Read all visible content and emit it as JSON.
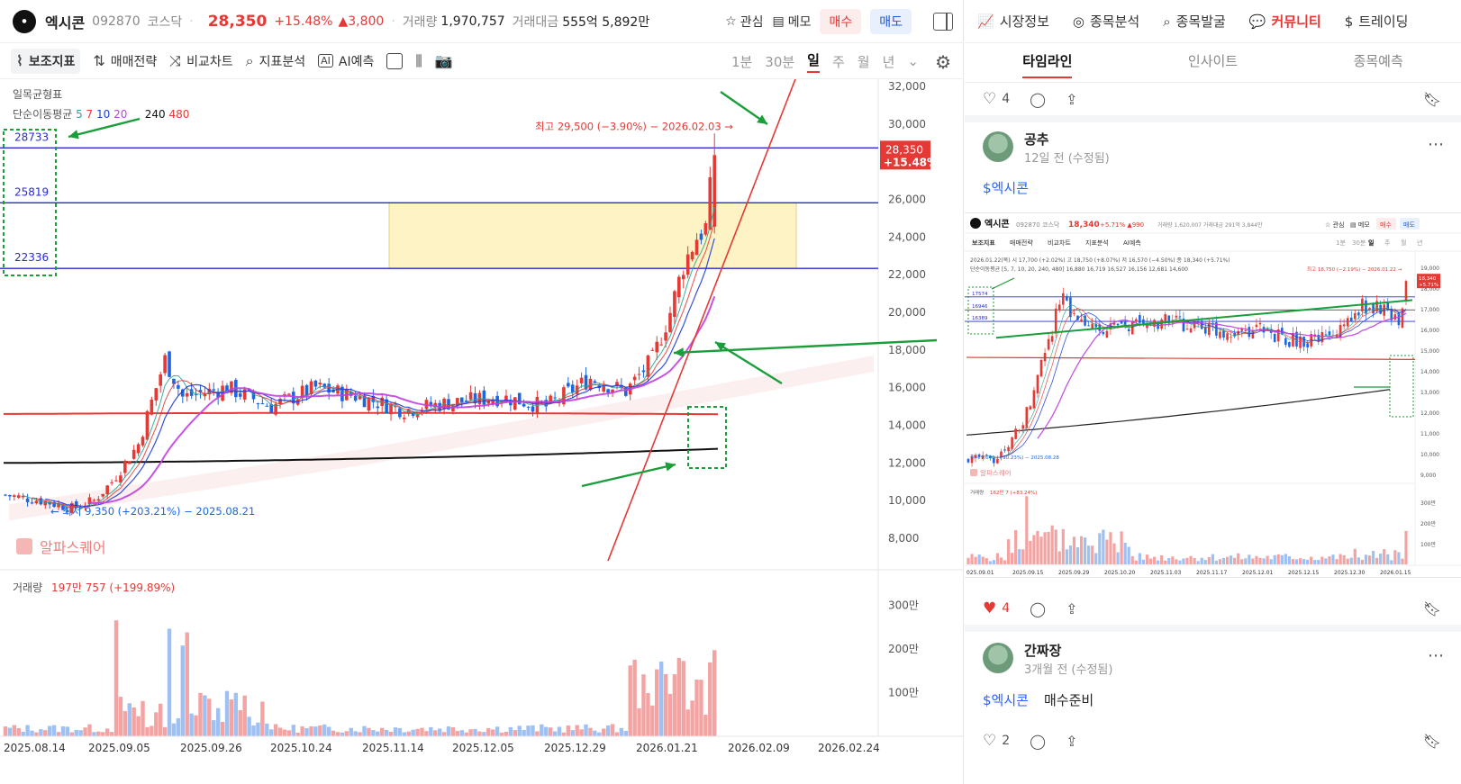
{
  "header": {
    "name": "엑시콘",
    "code": "092870",
    "market": "코스닥",
    "price": "28,350",
    "change_pct": "+15.48%",
    "change_abs": "▲3,800",
    "volume_label": "거래량",
    "volume": "1,970,757",
    "amount_label": "거래대금",
    "amount": "555억 5,892만",
    "watch": "관심",
    "memo": "메모",
    "buy": "매수",
    "sell": "매도"
  },
  "toolbar": {
    "aux": "보조지표",
    "strategy": "매매전략",
    "compare": "비교차트",
    "analysis": "지표분석",
    "ai": "AI예측",
    "periods": [
      "1분",
      "30분",
      "일",
      "주",
      "월",
      "년"
    ],
    "selected_period": "일"
  },
  "chart": {
    "ichimoku_label": "일목균형표",
    "ma_label": "단순이동평균",
    "ma_periods": [
      "5",
      "7",
      "10",
      "20",
      "240",
      "480"
    ],
    "ma_colors": [
      "#26a69a",
      "#e53935",
      "#1e3dd8",
      "#c040e0",
      "#111111",
      "#e53935"
    ],
    "y_ticks": [
      "32,000",
      "30,000",
      "28,000",
      "26,000",
      "24,000",
      "22,000",
      "20,000",
      "18,000",
      "16,000",
      "14,000",
      "12,000",
      "10,000",
      "8,000"
    ],
    "levels": [
      "28733",
      "25819",
      "22336"
    ],
    "price_tag": "28,350",
    "price_tag_pct": "+15.48%",
    "high_note": "최고 29,500 (−3.90%) − 2026.02.03 →",
    "low_note": "← 최저 9,350 (+203.21%) − 2025.08.21",
    "watermark": "알파스퀘어",
    "volume_label": "거래량",
    "volume_value": "197만 757 (+199.89%)",
    "vol_ticks": [
      "300만",
      "200만",
      "100만"
    ],
    "x_ticks": [
      "2025.08.14",
      "2025.09.05",
      "2025.09.26",
      "2025.10.24",
      "2025.11.14",
      "2025.12.05",
      "2025.12.29",
      "2026.01.21",
      "2026.02.09",
      "2026.02.24"
    ]
  },
  "chart_data": {
    "type": "candlestick",
    "x_range": [
      "2025.08.14",
      "2026.02.24"
    ],
    "ylim": [
      8000,
      32000
    ],
    "horizontal_levels": [
      28733,
      25819,
      22336
    ],
    "current_price": 28350,
    "high": 29500,
    "low": 9350,
    "volume_last": 1970757
  },
  "sidebar": {
    "nav": [
      "시장정보",
      "종목분석",
      "종목발굴",
      "커뮤니티",
      "트레이딩"
    ],
    "active_nav": "커뮤니티",
    "tabs": [
      "타임라인",
      "인사이트",
      "종목예측"
    ],
    "active_tab": "타임라인",
    "post0": {
      "likes": "4"
    },
    "post1": {
      "author": "공추",
      "time": "12일 전 (수정됨)",
      "tag": "$엑시콘",
      "likes": "4"
    },
    "thumb": {
      "name": "엑시콘",
      "code": "092870",
      "market": "코스닥",
      "price": "18,340",
      "change": "+5.71%",
      "delta": "▲990",
      "info": "거래량 1,620,007  거래대금 291억 3,844만",
      "watch": "관심",
      "memo": "메모",
      "buy": "매수",
      "sell": "매도",
      "toolbar": [
        "보조지표",
        "매매전략",
        "비교차트",
        "지표분석",
        "AI예측"
      ],
      "periods": [
        "1분",
        "30분",
        "일",
        "주",
        "월",
        "년"
      ],
      "ohlc": "2026.01.22(목)  시 17,700 (+2.02%)  고 18,750 (+8.07%)  저 16,570 (−4.50%)  종 18,340 (+5.71%)",
      "ma_line": "단순이동평균 [5, 7, 10, 20, 240, 480]  16,880  16,719  16,527  16,156  12,681  14,600",
      "levels": [
        "17574",
        "16946",
        "16389"
      ],
      "high_note": "최고 18,750 (−2.19%) − 2026.01.22 →",
      "low_note": "최저 9,640 (+90.23%) − 2025.08.28",
      "y_ticks": [
        "19,000",
        "18,000",
        "17,000",
        "16,000",
        "15,000",
        "14,000",
        "13,000",
        "12,000",
        "11,000",
        "10,000",
        "9,000"
      ],
      "price_tag": "18,340",
      "price_tag_pct": "+5.71%",
      "watermark": "알파스퀘어",
      "volume_label": "거래량",
      "volume_value": "162만 7 (+83.24%)",
      "vol_ticks": [
        "300만",
        "200만",
        "100만"
      ],
      "x_ticks": [
        "025.09.01",
        "2025.09.15",
        "2025.09.29",
        "2025.10.20",
        "2025.11.03",
        "2025.11.17",
        "2025.12.01",
        "2025.12.15",
        "2025.12.30",
        "2026.01.15"
      ]
    },
    "post2": {
      "author": "간짜장",
      "time": "3개월 전 (수정됨)",
      "tag": "$엑시콘",
      "text": "매수준비",
      "likes": "2"
    }
  }
}
